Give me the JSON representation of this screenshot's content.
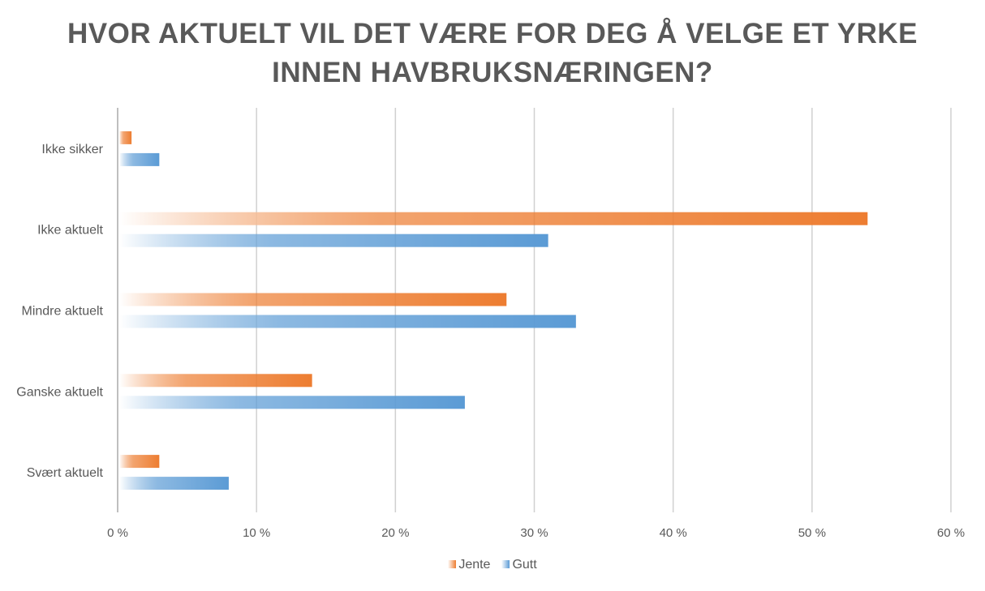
{
  "chart_data": {
    "type": "bar",
    "orientation": "horizontal",
    "title": "HVOR AKTUELT VIL DET VÆRE FOR DEG Å VELGE ET YRKE INNEN HAVBRUKSNÆRINGEN?",
    "title_lines": [
      "HVOR AKTUELT VIL DET VÆRE FOR DEG Å VELGE ET YRKE",
      "INNEN HAVBRUKSNÆRINGEN?"
    ],
    "categories": [
      "Ikke sikker",
      "Ikke aktuelt",
      "Mindre aktuelt",
      "Ganske aktuelt",
      "Svært aktuelt"
    ],
    "series": [
      {
        "name": "Jente",
        "color": "#ED7D31",
        "values": [
          1,
          54,
          28,
          14,
          3
        ]
      },
      {
        "name": "Gutt",
        "color": "#5B9BD5",
        "values": [
          3,
          31,
          33,
          25,
          8
        ]
      }
    ],
    "xlim": [
      0,
      60
    ],
    "xticks": [
      "0 %",
      "10 %",
      "20 %",
      "30 %",
      "40 %",
      "50 %",
      "60 %"
    ],
    "grid": true,
    "legend": "bottom"
  }
}
